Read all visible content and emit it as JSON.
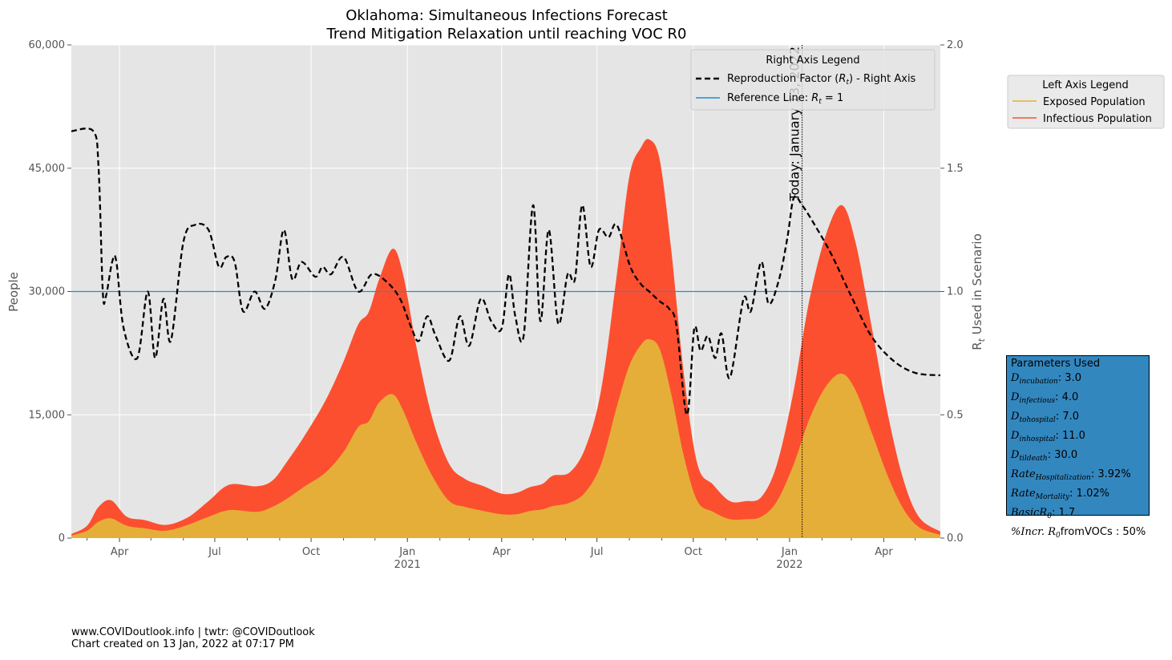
{
  "chart_data": {
    "type": "area",
    "title": "Oklahoma: Simultaneous Infections Forecast",
    "subtitle": "Trend Mitigation Relaxation until reaching VOC R0",
    "ylabel": "People",
    "ylabel_right": "R_t Used in Scenario",
    "ylim": [
      0,
      60000
    ],
    "ylim_right": [
      0,
      2.0
    ],
    "xlim": [
      "2020-02-15",
      "2022-05-25"
    ],
    "yticks": [
      {
        "value": 0,
        "label": "0"
      },
      {
        "value": 15000,
        "label": "15,000"
      },
      {
        "value": 30000,
        "label": "30,000"
      },
      {
        "value": 45000,
        "label": "45,000"
      },
      {
        "value": 60000,
        "label": "60,000"
      }
    ],
    "yticks_right": [
      {
        "value": 0.0,
        "label": "0.0"
      },
      {
        "value": 0.5,
        "label": "0.5"
      },
      {
        "value": 1.0,
        "label": "1.0"
      },
      {
        "value": 1.5,
        "label": "1.5"
      },
      {
        "value": 2.0,
        "label": "2.0"
      }
    ],
    "xticks": [
      {
        "date": "2020-04-01",
        "label": "Apr",
        "year": ""
      },
      {
        "date": "2020-07-01",
        "label": "Jul",
        "year": ""
      },
      {
        "date": "2020-10-01",
        "label": "Oct",
        "year": ""
      },
      {
        "date": "2021-01-01",
        "label": "Jan",
        "year": "2021"
      },
      {
        "date": "2021-04-01",
        "label": "Apr",
        "year": ""
      },
      {
        "date": "2021-07-01",
        "label": "Jul",
        "year": ""
      },
      {
        "date": "2021-10-01",
        "label": "Oct",
        "year": ""
      },
      {
        "date": "2022-01-01",
        "label": "Jan",
        "year": "2022"
      },
      {
        "date": "2022-04-01",
        "label": "Apr",
        "year": ""
      }
    ],
    "today": {
      "date": "2022-01-13",
      "label": "Today: January 13, 2022"
    },
    "reference_line": {
      "value": 1.0,
      "color": "#1f8fd0"
    },
    "series": [
      {
        "name": "Infectious Population",
        "axis": "left",
        "color": "#fc4f30",
        "points": [
          [
            "2020-02-15",
            500
          ],
          [
            "2020-03-01",
            1500
          ],
          [
            "2020-03-12",
            3800
          ],
          [
            "2020-03-24",
            4600
          ],
          [
            "2020-04-08",
            2600
          ],
          [
            "2020-04-25",
            2200
          ],
          [
            "2020-05-15",
            1600
          ],
          [
            "2020-06-05",
            2500
          ],
          [
            "2020-06-25",
            4500
          ],
          [
            "2020-07-15",
            6500
          ],
          [
            "2020-08-10",
            6300
          ],
          [
            "2020-08-25",
            7000
          ],
          [
            "2020-09-08",
            9300
          ],
          [
            "2020-09-25",
            12500
          ],
          [
            "2020-10-15",
            16800
          ],
          [
            "2020-11-01",
            21500
          ],
          [
            "2020-11-15",
            26000
          ],
          [
            "2020-11-25",
            27500
          ],
          [
            "2020-12-05",
            31500
          ],
          [
            "2020-12-18",
            35200
          ],
          [
            "2020-12-28",
            32000
          ],
          [
            "2021-01-10",
            23000
          ],
          [
            "2021-01-25",
            14500
          ],
          [
            "2021-02-10",
            9000
          ],
          [
            "2021-02-25",
            7200
          ],
          [
            "2021-03-15",
            6300
          ],
          [
            "2021-04-01",
            5400
          ],
          [
            "2021-04-15",
            5500
          ],
          [
            "2021-04-28",
            6200
          ],
          [
            "2021-05-10",
            6600
          ],
          [
            "2021-05-20",
            7600
          ],
          [
            "2021-06-05",
            8000
          ],
          [
            "2021-06-20",
            11000
          ],
          [
            "2021-07-05",
            18000
          ],
          [
            "2021-07-20",
            32000
          ],
          [
            "2021-08-01",
            44000
          ],
          [
            "2021-08-12",
            47500
          ],
          [
            "2021-08-20",
            48500
          ],
          [
            "2021-08-30",
            46000
          ],
          [
            "2021-09-10",
            35000
          ],
          [
            "2021-09-22",
            20000
          ],
          [
            "2021-10-05",
            9000
          ],
          [
            "2021-10-20",
            6500
          ],
          [
            "2021-11-05",
            4500
          ],
          [
            "2021-11-20",
            4500
          ],
          [
            "2021-12-05",
            5000
          ],
          [
            "2021-12-20",
            9000
          ],
          [
            "2022-01-05",
            18000
          ],
          [
            "2022-01-20",
            29000
          ],
          [
            "2022-02-05",
            37000
          ],
          [
            "2022-02-20",
            40500
          ],
          [
            "2022-03-05",
            36000
          ],
          [
            "2022-03-20",
            26000
          ],
          [
            "2022-04-05",
            15000
          ],
          [
            "2022-04-20",
            7000
          ],
          [
            "2022-05-05",
            2500
          ],
          [
            "2022-05-25",
            800
          ]
        ]
      },
      {
        "name": "Exposed Population",
        "axis": "left",
        "color": "#e5ae38",
        "points": [
          [
            "2020-02-15",
            300
          ],
          [
            "2020-03-01",
            900
          ],
          [
            "2020-03-12",
            2000
          ],
          [
            "2020-03-24",
            2400
          ],
          [
            "2020-04-08",
            1500
          ],
          [
            "2020-04-25",
            1200
          ],
          [
            "2020-05-15",
            900
          ],
          [
            "2020-06-05",
            1600
          ],
          [
            "2020-06-25",
            2600
          ],
          [
            "2020-07-15",
            3400
          ],
          [
            "2020-08-10",
            3200
          ],
          [
            "2020-08-25",
            3800
          ],
          [
            "2020-09-08",
            4800
          ],
          [
            "2020-09-25",
            6300
          ],
          [
            "2020-10-15",
            8000
          ],
          [
            "2020-11-01",
            10500
          ],
          [
            "2020-11-15",
            13500
          ],
          [
            "2020-11-25",
            14200
          ],
          [
            "2020-12-05",
            16500
          ],
          [
            "2020-12-18",
            17500
          ],
          [
            "2020-12-28",
            15500
          ],
          [
            "2021-01-10",
            11500
          ],
          [
            "2021-01-25",
            7500
          ],
          [
            "2021-02-10",
            4500
          ],
          [
            "2021-02-25",
            3800
          ],
          [
            "2021-03-15",
            3300
          ],
          [
            "2021-04-01",
            2900
          ],
          [
            "2021-04-15",
            2900
          ],
          [
            "2021-04-28",
            3300
          ],
          [
            "2021-05-10",
            3500
          ],
          [
            "2021-05-20",
            3900
          ],
          [
            "2021-06-05",
            4300
          ],
          [
            "2021-06-20",
            5600
          ],
          [
            "2021-07-05",
            9000
          ],
          [
            "2021-07-20",
            16000
          ],
          [
            "2021-08-01",
            21000
          ],
          [
            "2021-08-12",
            23500
          ],
          [
            "2021-08-20",
            24200
          ],
          [
            "2021-08-30",
            23000
          ],
          [
            "2021-09-10",
            17500
          ],
          [
            "2021-09-22",
            10000
          ],
          [
            "2021-10-05",
            4500
          ],
          [
            "2021-10-20",
            3200
          ],
          [
            "2021-11-05",
            2300
          ],
          [
            "2021-11-20",
            2300
          ],
          [
            "2021-12-05",
            2600
          ],
          [
            "2021-12-20",
            4500
          ],
          [
            "2022-01-05",
            9000
          ],
          [
            "2022-01-20",
            14500
          ],
          [
            "2022-02-05",
            18500
          ],
          [
            "2022-02-20",
            20000
          ],
          [
            "2022-03-05",
            18000
          ],
          [
            "2022-03-20",
            13000
          ],
          [
            "2022-04-05",
            7500
          ],
          [
            "2022-04-20",
            3500
          ],
          [
            "2022-05-05",
            1300
          ],
          [
            "2022-05-25",
            400
          ]
        ]
      },
      {
        "name": "Reproduction Factor (R_t) - Right Axis",
        "axis": "right",
        "color": "#000000",
        "style": "dashed",
        "points": [
          [
            "2020-02-15",
            1.65
          ],
          [
            "2020-03-07",
            1.65
          ],
          [
            "2020-03-12",
            1.5
          ],
          [
            "2020-03-16",
            1.0
          ],
          [
            "2020-03-19",
            0.98
          ],
          [
            "2020-03-25",
            1.12
          ],
          [
            "2020-03-29",
            1.12
          ],
          [
            "2020-04-05",
            0.85
          ],
          [
            "2020-04-18",
            0.73
          ],
          [
            "2020-04-28",
            1.0
          ],
          [
            "2020-05-05",
            0.73
          ],
          [
            "2020-05-13",
            0.97
          ],
          [
            "2020-05-20",
            0.8
          ],
          [
            "2020-06-01",
            1.2
          ],
          [
            "2020-06-12",
            1.27
          ],
          [
            "2020-06-25",
            1.25
          ],
          [
            "2020-07-05",
            1.1
          ],
          [
            "2020-07-12",
            1.14
          ],
          [
            "2020-07-20",
            1.12
          ],
          [
            "2020-07-28",
            0.92
          ],
          [
            "2020-08-08",
            1.0
          ],
          [
            "2020-08-18",
            0.93
          ],
          [
            "2020-08-28",
            1.05
          ],
          [
            "2020-09-05",
            1.25
          ],
          [
            "2020-09-13",
            1.05
          ],
          [
            "2020-09-22",
            1.12
          ],
          [
            "2020-10-05",
            1.06
          ],
          [
            "2020-10-12",
            1.1
          ],
          [
            "2020-10-20",
            1.07
          ],
          [
            "2020-11-01",
            1.14
          ],
          [
            "2020-11-15",
            1.0
          ],
          [
            "2020-11-28",
            1.07
          ],
          [
            "2020-12-12",
            1.04
          ],
          [
            "2020-12-25",
            0.97
          ],
          [
            "2021-01-05",
            0.85
          ],
          [
            "2021-01-12",
            0.8
          ],
          [
            "2021-01-20",
            0.9
          ],
          [
            "2021-01-28",
            0.82
          ],
          [
            "2021-02-10",
            0.72
          ],
          [
            "2021-02-20",
            0.9
          ],
          [
            "2021-03-01",
            0.78
          ],
          [
            "2021-03-12",
            0.97
          ],
          [
            "2021-03-22",
            0.88
          ],
          [
            "2021-04-01",
            0.85
          ],
          [
            "2021-04-08",
            1.07
          ],
          [
            "2021-04-14",
            0.9
          ],
          [
            "2021-04-22",
            0.82
          ],
          [
            "2021-05-01",
            1.35
          ],
          [
            "2021-05-08",
            0.88
          ],
          [
            "2021-05-16",
            1.25
          ],
          [
            "2021-05-25",
            0.87
          ],
          [
            "2021-06-03",
            1.07
          ],
          [
            "2021-06-10",
            1.05
          ],
          [
            "2021-06-17",
            1.35
          ],
          [
            "2021-06-25",
            1.1
          ],
          [
            "2021-07-03",
            1.25
          ],
          [
            "2021-07-12",
            1.22
          ],
          [
            "2021-07-20",
            1.27
          ],
          [
            "2021-08-02",
            1.1
          ],
          [
            "2021-08-12",
            1.03
          ],
          [
            "2021-08-20",
            1.0
          ],
          [
            "2021-08-30",
            0.96
          ],
          [
            "2021-09-08",
            0.93
          ],
          [
            "2021-09-15",
            0.86
          ],
          [
            "2021-09-25",
            0.5
          ],
          [
            "2021-10-02",
            0.85
          ],
          [
            "2021-10-08",
            0.76
          ],
          [
            "2021-10-15",
            0.82
          ],
          [
            "2021-10-22",
            0.73
          ],
          [
            "2021-10-28",
            0.83
          ],
          [
            "2021-11-05",
            0.65
          ],
          [
            "2021-11-18",
            0.97
          ],
          [
            "2021-11-25",
            0.92
          ],
          [
            "2021-12-05",
            1.12
          ],
          [
            "2021-12-12",
            0.95
          ],
          [
            "2021-12-22",
            1.05
          ],
          [
            "2021-12-30",
            1.22
          ],
          [
            "2022-01-05",
            1.38
          ],
          [
            "2022-01-13",
            1.35
          ],
          [
            "2022-01-25",
            1.27
          ],
          [
            "2022-02-10",
            1.15
          ],
          [
            "2022-03-01",
            0.98
          ],
          [
            "2022-03-20",
            0.82
          ],
          [
            "2022-04-10",
            0.72
          ],
          [
            "2022-05-01",
            0.67
          ],
          [
            "2022-05-25",
            0.66
          ]
        ]
      }
    ]
  },
  "legend_right": {
    "title": "Right Axis Legend",
    "items": [
      {
        "label": "Reproduction Factor (R_t) - Right Axis",
        "color": "#000000",
        "style": "dashed"
      },
      {
        "label": "Reference Line: R_t = 1",
        "color": "#1f8fd0",
        "style": "solid"
      }
    ]
  },
  "legend_left": {
    "title": "Left Axis Legend",
    "items": [
      {
        "label": "Exposed Population",
        "color": "#e5ae38"
      },
      {
        "label": "Infectious Population",
        "color": "#fc4f30"
      }
    ]
  },
  "parameters": {
    "title": "Parameters Used",
    "rows": [
      {
        "symbol": "D",
        "sub": "incubation",
        "value": ": 3.0"
      },
      {
        "symbol": "D",
        "sub": "infectious",
        "value": ": 4.0"
      },
      {
        "symbol": "D",
        "sub": "tohospital",
        "value": ": 7.0"
      },
      {
        "symbol": "D",
        "sub": "inhospital",
        "value": ": 11.0"
      },
      {
        "symbol": "D",
        "sub": "tildeath",
        "value": ": 30.0"
      },
      {
        "symbol": "Rate",
        "sub": "Hospitalization",
        "value": ": 3.92%"
      },
      {
        "symbol": "Rate",
        "sub": "Mortality",
        "value": ": 1.02%"
      },
      {
        "symbol": "BasicR",
        "sub": "0",
        "value": ": 1.7"
      },
      {
        "symbol": "%Incr. R",
        "sub": "0",
        "value": "fromVOCs : 50%"
      }
    ]
  },
  "footer": {
    "line1": "www.COVIDoutlook.info | twtr: @COVIDoutlook",
    "line2": "Chart created on 13 Jan, 2022 at 07:17 PM"
  }
}
